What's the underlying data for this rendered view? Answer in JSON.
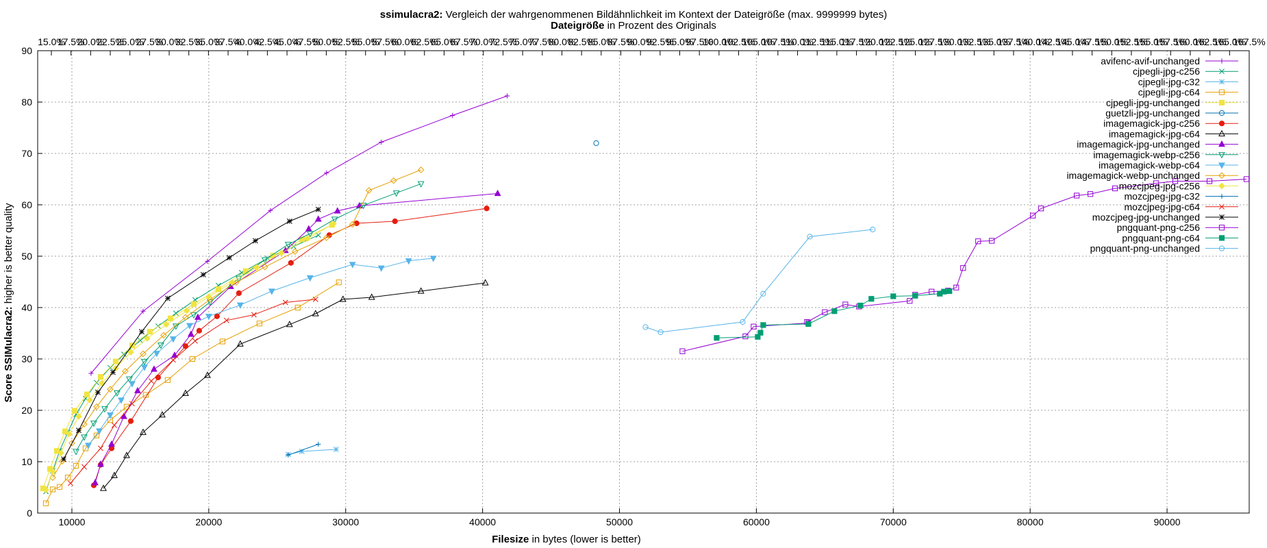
{
  "title": {
    "main_bold": "ssimulacra2:",
    "main_rest": " Vergleich der wahrgenommenen Bildähnlichkeit im Kontext der Dateigröße (max. 9999999 bytes)",
    "sub_bold": "Dateigröße",
    "sub_rest": " in Prozent des Originals"
  },
  "xlabel_bold": "Filesize",
  "xlabel_rest": " in bytes (lower is better)",
  "ylabel_bold": "Score SSIMulacra2:",
  "ylabel_rest": " higher is better quality",
  "chart_data": {
    "type": "line",
    "xlim": [
      7500,
      96000
    ],
    "ylim": [
      0,
      90
    ],
    "xticks": [
      10000,
      20000,
      30000,
      40000,
      50000,
      60000,
      70000,
      80000,
      90000
    ],
    "yticks": [
      0,
      10,
      20,
      30,
      40,
      50,
      60,
      70,
      80,
      90
    ],
    "top_axis": {
      "label": "Dateigröße in Prozent des Originals",
      "ticks": [
        "15.0%",
        "17.5%",
        "20.0%",
        "22.5%",
        "25.0%",
        "27.5%",
        "30.0%",
        "32.5%",
        "35.0%",
        "37.5%",
        "40.0%",
        "42.5%",
        "45.0%",
        "47.5%",
        "50.0%",
        "52.5%",
        "55.0%",
        "57.5%",
        "60.0%",
        "62.5%",
        "65.0%",
        "67.5%",
        "70.0%",
        "72.5%",
        "75.0%",
        "77.5%",
        "80.0%",
        "82.5%",
        "85.0%",
        "87.5%",
        "90.0%",
        "92.5%",
        "95.0%",
        "97.5%",
        "100.0%",
        "102.5%",
        "105.0%",
        "107.5%",
        "110.0%",
        "112.5%",
        "115.0%",
        "117.5%",
        "120.0%",
        "122.5%",
        "125.0%",
        "127.5%",
        "130.0%",
        "132.5%",
        "135.0%",
        "137.5%",
        "140.0%",
        "142.5%",
        "145.0%",
        "147.5%",
        "150.0%",
        "152.5%",
        "155.0%",
        "157.5%",
        "160.0%",
        "162.5%",
        "165.0%",
        "167.5%"
      ]
    },
    "grid": true,
    "legend_position": "top-right",
    "series": [
      {
        "name": "avifenc-avif-unchanged",
        "color": "#9400d3",
        "marker": "plus",
        "x": [
          11400,
          15200,
          19900,
          24500,
          28600,
          32600,
          37800,
          41800
        ],
        "y": [
          27.2,
          39.3,
          49.0,
          58.9,
          66.2,
          72.2,
          77.4,
          81.2
        ]
      },
      {
        "name": "cjpegli-jpg-c256",
        "color": "#009e73",
        "marker": "cross",
        "x": [
          8100,
          8600,
          9100,
          9700,
          10300,
          11000,
          11800,
          12800,
          13800,
          15000,
          16300,
          17600,
          19000,
          20700,
          22400,
          24300,
          26200,
          28000
        ],
        "y": [
          4.2,
          8.2,
          12.1,
          15.7,
          19.2,
          22.3,
          25.4,
          28.3,
          30.9,
          33.6,
          36.4,
          38.9,
          41.5,
          44.3,
          46.8,
          49.6,
          51.9,
          54.1
        ]
      },
      {
        "name": "cjpegli-jpg-c32",
        "color": "#56b4e9",
        "marker": "star",
        "x": [
          25800,
          26800,
          29300
        ],
        "y": [
          11.4,
          12.0,
          12.4
        ]
      },
      {
        "name": "cjpegli-jpg-c64",
        "color": "#e69f00",
        "marker": "box",
        "x": [
          8100,
          8600,
          9100,
          9700,
          10300,
          11000,
          11800,
          12800,
          14000,
          15400,
          17000,
          18800,
          21000,
          23700,
          26500,
          29500
        ],
        "y": [
          1.9,
          4.6,
          5.1,
          6.9,
          9.2,
          12.6,
          15.1,
          18.1,
          20.7,
          23.0,
          25.9,
          30.0,
          33.4,
          36.9,
          40.0,
          44.9
        ]
      },
      {
        "name": "cjpegli-jpg-unchanged",
        "color": "#f0e442",
        "marker": "boxfilled",
        "x": [
          7900,
          8400,
          8900,
          9500,
          10200,
          11100,
          12100,
          13200,
          14400,
          15700,
          17200,
          18900,
          20700,
          22700,
          24700,
          26800,
          29000
        ],
        "y": [
          4.8,
          8.6,
          12.1,
          15.9,
          19.9,
          23.1,
          26.5,
          29.5,
          32.6,
          35.3,
          37.9,
          40.7,
          43.6,
          47.1,
          50.1,
          53.3,
          56.1
        ]
      },
      {
        "name": "guetzli-jpg-unchanged",
        "color": "#0072b2",
        "marker": "circle",
        "x": [
          48300
        ],
        "y": [
          72.0
        ]
      },
      {
        "name": "imagemagick-jpg-c256",
        "color": "#e51e10",
        "marker": "circlefilled",
        "x": [
          11600,
          12100,
          12900,
          14300,
          16300,
          18300,
          19300,
          20600,
          22200,
          26000,
          28800,
          30800,
          33600,
          40300
        ],
        "y": [
          5.4,
          9.4,
          12.6,
          17.9,
          26.4,
          32.5,
          35.5,
          38.3,
          42.8,
          48.7,
          54.1,
          56.4,
          56.8,
          59.3
        ]
      },
      {
        "name": "imagemagick-jpg-c64",
        "color": "#000000",
        "marker": "triangle",
        "x": [
          12300,
          13100,
          14000,
          15200,
          16600,
          18300,
          19900,
          22300,
          25900,
          27800,
          29800,
          31900,
          35500,
          40200
        ],
        "y": [
          4.8,
          7.3,
          11.2,
          15.7,
          19.1,
          23.3,
          26.8,
          32.9,
          36.7,
          38.8,
          41.6,
          42.0,
          43.2,
          44.8
        ]
      },
      {
        "name": "imagemagick-jpg-unchanged",
        "color": "#9400d3",
        "marker": "trianglefilled",
        "x": [
          11700,
          12100,
          12900,
          13800,
          14800,
          16000,
          17500,
          18700,
          19200,
          21600,
          25600,
          27300,
          28000,
          29400,
          31000,
          41100
        ],
        "y": [
          5.9,
          9.5,
          13.4,
          18.8,
          23.8,
          28.0,
          30.7,
          34.8,
          38.1,
          44.1,
          51.1,
          55.3,
          57.2,
          58.8,
          59.8,
          62.2
        ]
      },
      {
        "name": "imagemagick-webp-c256",
        "color": "#009e73",
        "marker": "triangledown",
        "x": [
          10300,
          10900,
          11600,
          12400,
          13300,
          14200,
          15300,
          16500,
          17600,
          18900,
          20100,
          22200,
          24100,
          25800,
          27400,
          29200,
          31300,
          33700,
          35500
        ],
        "y": [
          12.0,
          14.8,
          17.5,
          20.3,
          23.4,
          26.1,
          29.5,
          32.7,
          36.4,
          38.6,
          41.1,
          45.7,
          49.3,
          52.3,
          54.4,
          57.2,
          59.9,
          62.3,
          64.1
        ]
      },
      {
        "name": "imagemagick-webp-c64",
        "color": "#56b4e9",
        "marker": "triangledownfilled",
        "x": [
          11200,
          12000,
          12800,
          13600,
          14400,
          15300,
          16200,
          17400,
          18600,
          20000,
          22300,
          24600,
          27400,
          30500,
          32600,
          34600,
          36400
        ],
        "y": [
          13.2,
          16.0,
          19.1,
          22.0,
          25.2,
          28.4,
          31.1,
          33.9,
          36.5,
          38.3,
          40.5,
          43.2,
          45.8,
          48.4,
          47.7,
          49.1,
          49.6
        ]
      },
      {
        "name": "imagemagick-webp-unchanged",
        "color": "#e69f00",
        "marker": "diamond",
        "x": [
          8600,
          9300,
          10000,
          10900,
          11800,
          12800,
          13900,
          15200,
          16700,
          18300,
          20100,
          22000,
          24100,
          26300,
          28600,
          30500,
          31700,
          33500,
          35500
        ],
        "y": [
          6.9,
          10.1,
          13.6,
          17.3,
          20.7,
          24.1,
          27.6,
          31.0,
          34.6,
          38.1,
          41.6,
          44.9,
          47.9,
          50.9,
          53.6,
          56.2,
          62.8,
          64.7,
          66.8
        ]
      },
      {
        "name": "mozcjpeg-jpg-c256",
        "color": "#f0e442",
        "marker": "diamondfilled",
        "x": [
          8100,
          8600,
          9200,
          9800,
          10500,
          11300,
          12200,
          13200,
          14300,
          15500,
          16900,
          18400,
          20000,
          21700,
          23500,
          25300,
          27200,
          29100
        ],
        "y": [
          4.5,
          8.1,
          11.7,
          15.4,
          18.8,
          22.0,
          25.3,
          28.2,
          31.3,
          34.0,
          36.7,
          39.4,
          42.1,
          44.9,
          47.8,
          50.6,
          53.4,
          56.3
        ]
      },
      {
        "name": "mozcjpeg-jpg-c32",
        "color": "#0072b2",
        "marker": "plus",
        "x": [
          25800,
          28000
        ],
        "y": [
          11.3,
          13.4
        ]
      },
      {
        "name": "mozcjpeg-jpg-c64",
        "color": "#e51e10",
        "marker": "cross",
        "x": [
          9900,
          10900,
          12100,
          13100,
          14400,
          15800,
          17400,
          19000,
          21300,
          23300,
          25600,
          27800
        ],
        "y": [
          5.8,
          9.0,
          12.6,
          17.1,
          21.3,
          25.7,
          29.8,
          33.5,
          37.5,
          38.6,
          41.0,
          41.6
        ]
      },
      {
        "name": "mozcjpeg-jpg-unchanged",
        "color": "#000000",
        "marker": "star",
        "x": [
          9400,
          10500,
          11900,
          13000,
          15100,
          17000,
          19600,
          21500,
          23400,
          25900,
          28000
        ],
        "y": [
          10.5,
          16.1,
          23.5,
          27.4,
          35.3,
          41.8,
          46.4,
          49.7,
          53.0,
          56.8,
          59.1
        ]
      },
      {
        "name": "pngquant-png-c256",
        "color": "#9400d3",
        "marker": "box",
        "x": [
          54600,
          59200,
          59800,
          63800,
          63700,
          65000,
          66500,
          67500,
          71200,
          71600,
          72800,
          74000,
          74600,
          75100,
          76200,
          77200,
          80200,
          80800,
          83400,
          84400,
          86200,
          89200,
          90600,
          93100,
          95800
        ],
        "y": [
          31.5,
          34.4,
          36.3,
          37.0,
          37.2,
          39.1,
          40.6,
          40.2,
          41.3,
          42.5,
          43.1,
          43.3,
          43.9,
          47.7,
          52.9,
          53.0,
          57.9,
          59.3,
          61.8,
          62.1,
          63.2,
          64.2,
          64.6,
          64.6,
          65.0
        ]
      },
      {
        "name": "pngquant-png-c64",
        "color": "#009e73",
        "marker": "boxfilled",
        "x": [
          57100,
          60100,
          60300,
          60500,
          63800,
          65700,
          67600,
          68400,
          70000,
          71600,
          73400,
          73700,
          74100
        ],
        "y": [
          34.1,
          34.3,
          35.1,
          36.6,
          36.8,
          39.3,
          40.4,
          41.7,
          42.2,
          42.3,
          42.7,
          43.1,
          43.2
        ]
      },
      {
        "name": "pngquant-png-unchanged",
        "color": "#56b4e9",
        "marker": "circle",
        "x": [
          51900,
          53000,
          59000,
          60500,
          63900,
          68500
        ],
        "y": [
          36.2,
          35.2,
          37.2,
          42.7,
          53.8,
          55.2
        ]
      }
    ]
  }
}
